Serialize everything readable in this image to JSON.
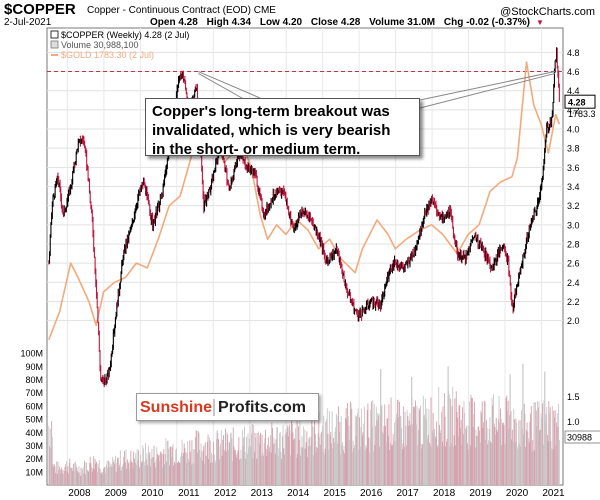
{
  "header": {
    "symbol": "$COPPER",
    "description": "Copper - Continuous Contract (EOD)",
    "exchange": "CME",
    "date": "2-Jul-2021",
    "open": "Open 4.28",
    "high": "High 4.34",
    "low": "Low 4.20",
    "close": "Close 4.28",
    "volume": "Volume 31.0M",
    "chg": "Chg -0.02 (-0.37%)",
    "brand": "StockCharts.com",
    "brand_prefix": "@"
  },
  "legend": {
    "copper": "$COPPER (Weekly) 4.28 (2 Jul)",
    "volume": "Volume 30,988,100",
    "gold": "$GOLD 1783.30 (2 Jul)"
  },
  "annotation": {
    "lines": [
      "Copper's long-term breakout was",
      "invalidated, which is very bearish",
      "in the short- or medium term."
    ]
  },
  "logo": {
    "part1": "Sunshine",
    "part2": "Profits.com"
  },
  "colors": {
    "up": "#000000",
    "down": "#c0143c",
    "gold": "#f4a97c",
    "volume": "#c8c8c8",
    "resistance": "#b03a4a",
    "accent_down": "#c0143c"
  },
  "chart_data": {
    "type": "line",
    "title": "$COPPER (Weekly)",
    "x_ticks": [
      "2008",
      "2009",
      "2010",
      "2011",
      "2012",
      "2013",
      "2014",
      "2015",
      "2016",
      "2017",
      "2018",
      "2019",
      "2020",
      "2021"
    ],
    "y_ticks": [
      "2.0",
      "2.2",
      "2.4",
      "2.6",
      "2.8",
      "3.0",
      "3.2",
      "3.4",
      "3.6",
      "3.8",
      "4.0",
      "4.2",
      "4.4",
      "4.6",
      "4.8"
    ],
    "y_range": [
      1.85,
      4.95
    ],
    "volume_ticks": [
      "10M",
      "20M",
      "30M",
      "40M",
      "50M",
      "60M",
      "70M",
      "80M",
      "90M",
      "100M"
    ],
    "volume_range": [
      0,
      110
    ],
    "resistance_level": 4.6,
    "last_price_label": "4.28",
    "gold_last_label": "1783.3",
    "volume_last_label": "30988",
    "volume_right_axis": [
      "1.5",
      "1.0"
    ],
    "copper": [
      {
        "x": 2007.5,
        "y": 2.6
      },
      {
        "x": 2007.6,
        "y": 3.25
      },
      {
        "x": 2007.75,
        "y": 3.5
      },
      {
        "x": 2007.9,
        "y": 3.1
      },
      {
        "x": 2008.1,
        "y": 3.4
      },
      {
        "x": 2008.3,
        "y": 3.85
      },
      {
        "x": 2008.45,
        "y": 3.9
      },
      {
        "x": 2008.55,
        "y": 3.6
      },
      {
        "x": 2008.7,
        "y": 3.0
      },
      {
        "x": 2008.82,
        "y": 2.2
      },
      {
        "x": 2008.92,
        "y": 1.4
      },
      {
        "x": 2009.0,
        "y": 1.35
      },
      {
        "x": 2009.15,
        "y": 1.45
      },
      {
        "x": 2009.35,
        "y": 2.1
      },
      {
        "x": 2009.55,
        "y": 2.7
      },
      {
        "x": 2009.75,
        "y": 2.95
      },
      {
        "x": 2009.95,
        "y": 3.3
      },
      {
        "x": 2010.1,
        "y": 3.45
      },
      {
        "x": 2010.35,
        "y": 3.0
      },
      {
        "x": 2010.6,
        "y": 3.3
      },
      {
        "x": 2010.85,
        "y": 3.9
      },
      {
        "x": 2011.05,
        "y": 4.5
      },
      {
        "x": 2011.15,
        "y": 4.6
      },
      {
        "x": 2011.35,
        "y": 4.2
      },
      {
        "x": 2011.55,
        "y": 4.45
      },
      {
        "x": 2011.75,
        "y": 3.2
      },
      {
        "x": 2011.95,
        "y": 3.4
      },
      {
        "x": 2012.2,
        "y": 3.85
      },
      {
        "x": 2012.45,
        "y": 3.35
      },
      {
        "x": 2012.7,
        "y": 3.75
      },
      {
        "x": 2012.95,
        "y": 3.6
      },
      {
        "x": 2013.15,
        "y": 3.55
      },
      {
        "x": 2013.4,
        "y": 3.1
      },
      {
        "x": 2013.65,
        "y": 3.3
      },
      {
        "x": 2013.95,
        "y": 3.35
      },
      {
        "x": 2014.2,
        "y": 2.95
      },
      {
        "x": 2014.45,
        "y": 3.15
      },
      {
        "x": 2014.7,
        "y": 3.05
      },
      {
        "x": 2014.95,
        "y": 2.85
      },
      {
        "x": 2015.1,
        "y": 2.6
      },
      {
        "x": 2015.4,
        "y": 2.75
      },
      {
        "x": 2015.65,
        "y": 2.35
      },
      {
        "x": 2015.9,
        "y": 2.1
      },
      {
        "x": 2016.05,
        "y": 2.05
      },
      {
        "x": 2016.3,
        "y": 2.2
      },
      {
        "x": 2016.6,
        "y": 2.15
      },
      {
        "x": 2016.85,
        "y": 2.55
      },
      {
        "x": 2017.0,
        "y": 2.6
      },
      {
        "x": 2017.25,
        "y": 2.55
      },
      {
        "x": 2017.5,
        "y": 2.7
      },
      {
        "x": 2017.8,
        "y": 3.1
      },
      {
        "x": 2018.0,
        "y": 3.25
      },
      {
        "x": 2018.3,
        "y": 3.05
      },
      {
        "x": 2018.5,
        "y": 3.15
      },
      {
        "x": 2018.7,
        "y": 2.7
      },
      {
        "x": 2018.95,
        "y": 2.65
      },
      {
        "x": 2019.15,
        "y": 2.9
      },
      {
        "x": 2019.4,
        "y": 2.75
      },
      {
        "x": 2019.65,
        "y": 2.55
      },
      {
        "x": 2019.95,
        "y": 2.8
      },
      {
        "x": 2020.1,
        "y": 2.6
      },
      {
        "x": 2020.22,
        "y": 2.1
      },
      {
        "x": 2020.3,
        "y": 2.3
      },
      {
        "x": 2020.5,
        "y": 2.65
      },
      {
        "x": 2020.7,
        "y": 3.0
      },
      {
        "x": 2020.9,
        "y": 3.2
      },
      {
        "x": 2021.05,
        "y": 3.55
      },
      {
        "x": 2021.15,
        "y": 4.0
      },
      {
        "x": 2021.3,
        "y": 4.1
      },
      {
        "x": 2021.38,
        "y": 4.7
      },
      {
        "x": 2021.42,
        "y": 4.8
      },
      {
        "x": 2021.47,
        "y": 4.5
      },
      {
        "x": 2021.5,
        "y": 4.28
      }
    ],
    "gold": [
      {
        "x": 2007.5,
        "y": 1.8
      },
      {
        "x": 2007.8,
        "y": 2.1
      },
      {
        "x": 2008.1,
        "y": 2.6
      },
      {
        "x": 2008.3,
        "y": 2.45
      },
      {
        "x": 2008.6,
        "y": 2.2
      },
      {
        "x": 2008.8,
        "y": 1.95
      },
      {
        "x": 2009.0,
        "y": 2.3
      },
      {
        "x": 2009.3,
        "y": 2.4
      },
      {
        "x": 2009.6,
        "y": 2.45
      },
      {
        "x": 2009.9,
        "y": 2.6
      },
      {
        "x": 2010.2,
        "y": 2.55
      },
      {
        "x": 2010.5,
        "y": 2.85
      },
      {
        "x": 2010.8,
        "y": 3.2
      },
      {
        "x": 2011.1,
        "y": 3.3
      },
      {
        "x": 2011.4,
        "y": 3.7
      },
      {
        "x": 2011.6,
        "y": 4.1
      },
      {
        "x": 2011.8,
        "y": 3.8
      },
      {
        "x": 2012.05,
        "y": 3.95
      },
      {
        "x": 2012.3,
        "y": 3.65
      },
      {
        "x": 2012.55,
        "y": 3.75
      },
      {
        "x": 2012.8,
        "y": 3.85
      },
      {
        "x": 2013.05,
        "y": 3.6
      },
      {
        "x": 2013.3,
        "y": 3.1
      },
      {
        "x": 2013.5,
        "y": 2.85
      },
      {
        "x": 2013.75,
        "y": 3.0
      },
      {
        "x": 2014.0,
        "y": 2.9
      },
      {
        "x": 2014.3,
        "y": 3.05
      },
      {
        "x": 2014.6,
        "y": 2.95
      },
      {
        "x": 2014.9,
        "y": 2.75
      },
      {
        "x": 2015.2,
        "y": 2.85
      },
      {
        "x": 2015.5,
        "y": 2.65
      },
      {
        "x": 2015.9,
        "y": 2.5
      },
      {
        "x": 2016.1,
        "y": 2.75
      },
      {
        "x": 2016.5,
        "y": 3.05
      },
      {
        "x": 2016.8,
        "y": 2.9
      },
      {
        "x": 2017.0,
        "y": 2.75
      },
      {
        "x": 2017.3,
        "y": 2.85
      },
      {
        "x": 2017.7,
        "y": 2.95
      },
      {
        "x": 2018.0,
        "y": 3.0
      },
      {
        "x": 2018.3,
        "y": 2.9
      },
      {
        "x": 2018.7,
        "y": 2.7
      },
      {
        "x": 2019.0,
        "y": 2.9
      },
      {
        "x": 2019.3,
        "y": 3.0
      },
      {
        "x": 2019.6,
        "y": 3.35
      },
      {
        "x": 2019.9,
        "y": 3.45
      },
      {
        "x": 2020.2,
        "y": 3.5
      },
      {
        "x": 2020.35,
        "y": 3.7
      },
      {
        "x": 2020.6,
        "y": 4.7
      },
      {
        "x": 2020.8,
        "y": 4.25
      },
      {
        "x": 2021.0,
        "y": 4.05
      },
      {
        "x": 2021.2,
        "y": 3.75
      },
      {
        "x": 2021.4,
        "y": 4.15
      },
      {
        "x": 2021.5,
        "y": 4.05
      }
    ],
    "volume": [
      {
        "x": 2007.6,
        "y": 14
      },
      {
        "x": 2007.8,
        "y": 12
      },
      {
        "x": 2008.0,
        "y": 15
      },
      {
        "x": 2008.2,
        "y": 13
      },
      {
        "x": 2008.4,
        "y": 12
      },
      {
        "x": 2008.6,
        "y": 16
      },
      {
        "x": 2008.8,
        "y": 18
      },
      {
        "x": 2009.0,
        "y": 13
      },
      {
        "x": 2009.2,
        "y": 14
      },
      {
        "x": 2009.4,
        "y": 18
      },
      {
        "x": 2009.6,
        "y": 20
      },
      {
        "x": 2009.8,
        "y": 19
      },
      {
        "x": 2010.0,
        "y": 21
      },
      {
        "x": 2010.2,
        "y": 23
      },
      {
        "x": 2010.4,
        "y": 22
      },
      {
        "x": 2010.6,
        "y": 24
      },
      {
        "x": 2010.8,
        "y": 26
      },
      {
        "x": 2011.0,
        "y": 27
      },
      {
        "x": 2011.2,
        "y": 25
      },
      {
        "x": 2011.4,
        "y": 28
      },
      {
        "x": 2011.6,
        "y": 30
      },
      {
        "x": 2011.8,
        "y": 29
      },
      {
        "x": 2012.0,
        "y": 30
      },
      {
        "x": 2012.2,
        "y": 29
      },
      {
        "x": 2012.4,
        "y": 31
      },
      {
        "x": 2012.6,
        "y": 30
      },
      {
        "x": 2012.8,
        "y": 32
      },
      {
        "x": 2013.0,
        "y": 33
      },
      {
        "x": 2013.2,
        "y": 31
      },
      {
        "x": 2013.4,
        "y": 34
      },
      {
        "x": 2013.6,
        "y": 33
      },
      {
        "x": 2013.8,
        "y": 35
      },
      {
        "x": 2014.0,
        "y": 34
      },
      {
        "x": 2014.2,
        "y": 36
      },
      {
        "x": 2014.4,
        "y": 35
      },
      {
        "x": 2014.6,
        "y": 37
      },
      {
        "x": 2014.8,
        "y": 38
      },
      {
        "x": 2015.0,
        "y": 40
      },
      {
        "x": 2015.2,
        "y": 42
      },
      {
        "x": 2015.4,
        "y": 41
      },
      {
        "x": 2015.6,
        "y": 43
      },
      {
        "x": 2015.8,
        "y": 44
      },
      {
        "x": 2016.0,
        "y": 42
      },
      {
        "x": 2016.2,
        "y": 44
      },
      {
        "x": 2016.4,
        "y": 45
      },
      {
        "x": 2016.6,
        "y": 43
      },
      {
        "x": 2016.8,
        "y": 47
      },
      {
        "x": 2017.0,
        "y": 46
      },
      {
        "x": 2017.2,
        "y": 44
      },
      {
        "x": 2017.4,
        "y": 46
      },
      {
        "x": 2017.6,
        "y": 48
      },
      {
        "x": 2017.8,
        "y": 47
      },
      {
        "x": 2018.0,
        "y": 50
      },
      {
        "x": 2018.2,
        "y": 52
      },
      {
        "x": 2018.4,
        "y": 48
      },
      {
        "x": 2018.6,
        "y": 53
      },
      {
        "x": 2018.8,
        "y": 50
      },
      {
        "x": 2019.0,
        "y": 48
      },
      {
        "x": 2019.2,
        "y": 47
      },
      {
        "x": 2019.4,
        "y": 50
      },
      {
        "x": 2019.6,
        "y": 49
      },
      {
        "x": 2019.8,
        "y": 47
      },
      {
        "x": 2020.0,
        "y": 46
      },
      {
        "x": 2020.2,
        "y": 50
      },
      {
        "x": 2020.4,
        "y": 44
      },
      {
        "x": 2020.6,
        "y": 42
      },
      {
        "x": 2020.8,
        "y": 44
      },
      {
        "x": 2021.0,
        "y": 46
      },
      {
        "x": 2021.2,
        "y": 48
      },
      {
        "x": 2021.4,
        "y": 45
      }
    ],
    "volume_spikes": [
      {
        "x": 2016.6,
        "y": 88
      },
      {
        "x": 2017.45,
        "y": 82
      },
      {
        "x": 2018.45,
        "y": 90
      },
      {
        "x": 2020.15,
        "y": 84
      },
      {
        "x": 2020.5,
        "y": 92
      },
      {
        "x": 2021.1,
        "y": 86
      }
    ]
  }
}
